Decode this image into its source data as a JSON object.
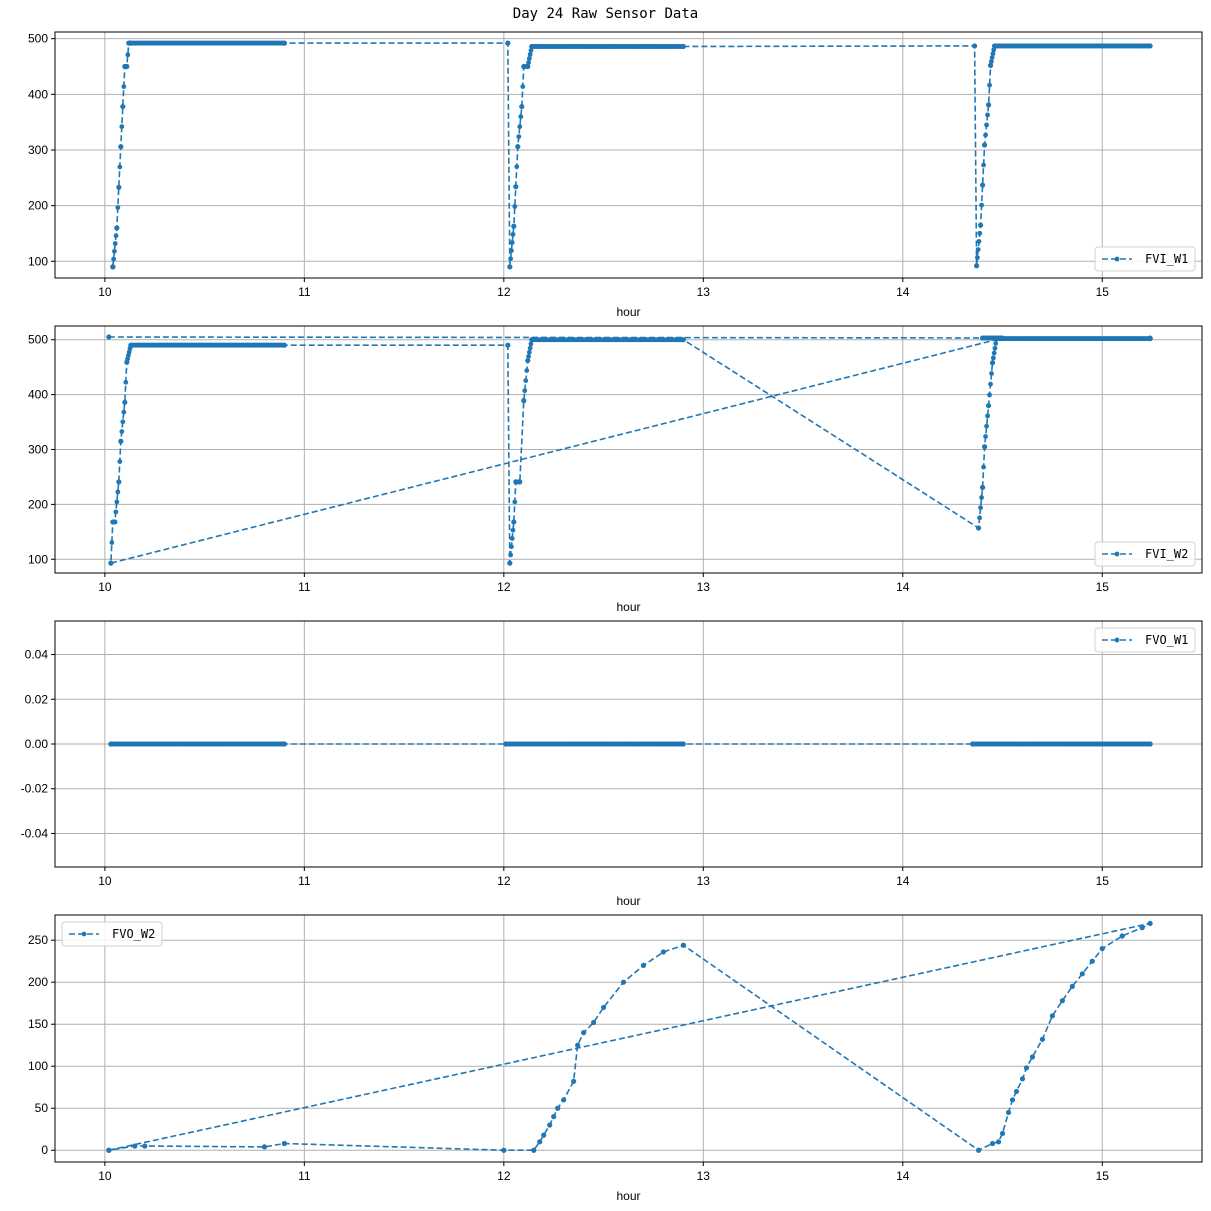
{
  "figure": {
    "title": "Day 24 Raw Sensor Data",
    "line_color": "#1f77b4",
    "grid_color": "#b0b0b0"
  },
  "chart_data": [
    {
      "type": "line",
      "title": "",
      "series": [
        {
          "name": "FVI_W1",
          "style": "dashed-with-dot-markers",
          "x": [
            10.04,
            10.04,
            10.06,
            10.07,
            10.08,
            10.09,
            10.1,
            10.11,
            10.12,
            10.13,
            10.9,
            12.02,
            12.03,
            12.05,
            12.06,
            12.07,
            12.09,
            12.1,
            12.12,
            12.14,
            12.9,
            14.36,
            14.37,
            14.39,
            14.4,
            14.41,
            14.43,
            14.44,
            14.46,
            14.47,
            15.24
          ],
          "y": [
            90,
            90,
            160,
            233,
            306,
            378,
            450,
            450,
            492,
            492,
            492,
            492,
            90,
            163,
            234,
            306,
            378,
            450,
            450,
            486,
            486,
            487,
            92,
            165,
            237,
            309,
            381,
            452,
            487,
            487,
            487
          ]
        }
      ],
      "xlabel": "hour",
      "ylabel": "",
      "xlim": [
        9.75,
        15.5
      ],
      "ylim": [
        70,
        512
      ],
      "xticks": [
        10,
        11,
        12,
        13,
        14,
        15
      ],
      "yticks": [
        100,
        200,
        300,
        400,
        500
      ],
      "ytick_labels": [
        "100",
        "200",
        "300",
        "400",
        "500"
      ],
      "grid": true,
      "legend_position": "lower right"
    },
    {
      "type": "line",
      "title": "",
      "series": [
        {
          "name": "FVI_W2",
          "style": "dashed-with-dot-markers",
          "x": [
            10.02,
            15.24,
            14.4,
            14.5,
            10.03,
            10.04,
            10.05,
            10.07,
            10.08,
            10.1,
            10.11,
            10.13,
            10.9,
            12.02,
            12.03,
            12.05,
            12.06,
            12.08,
            12.1,
            12.12,
            12.14,
            12.9,
            14.38,
            14.4,
            14.41,
            14.43,
            14.45,
            14.47,
            15.24
          ],
          "y": [
            505,
            503,
            503,
            503,
            93,
            168,
            168,
            241,
            315,
            386,
            459,
            490,
            490,
            490,
            93,
            168,
            241,
            241,
            389,
            462,
            500,
            500,
            157,
            231,
            305,
            380,
            458,
            502,
            502
          ]
        }
      ],
      "xlabel": "hour",
      "ylabel": "",
      "xlim": [
        9.75,
        15.5
      ],
      "ylim": [
        75,
        525
      ],
      "xticks": [
        10,
        11,
        12,
        13,
        14,
        15
      ],
      "yticks": [
        100,
        200,
        300,
        400,
        500
      ],
      "ytick_labels": [
        "100",
        "200",
        "300",
        "400",
        "500"
      ],
      "grid": true,
      "legend_position": "lower right"
    },
    {
      "type": "line",
      "title": "",
      "series": [
        {
          "name": "FVO_W1",
          "style": "dashed-with-dot-markers",
          "x": [
            10.03,
            10.9,
            12.01,
            12.9,
            14.35,
            15.24
          ],
          "y": [
            0,
            0,
            0,
            0,
            0,
            0
          ]
        }
      ],
      "xlabel": "hour",
      "ylabel": "",
      "xlim": [
        9.75,
        15.5
      ],
      "ylim": [
        -0.055,
        0.055
      ],
      "xticks": [
        10,
        11,
        12,
        13,
        14,
        15
      ],
      "yticks": [
        -0.04,
        -0.02,
        0.0,
        0.02,
        0.04
      ],
      "ytick_labels": [
        "-0.04",
        "-0.02",
        "0.00",
        "0.02",
        "0.04"
      ],
      "grid": true,
      "legend_position": "upper right"
    },
    {
      "type": "line",
      "title": "",
      "series": [
        {
          "name": "FVO_W2",
          "style": "dashed-with-dot-markers",
          "x": [
            10.02,
            15.24,
            15.2,
            15.1,
            15.0,
            14.95,
            14.9,
            14.85,
            14.8,
            14.75,
            14.7,
            14.65,
            14.62,
            14.6,
            14.57,
            14.55,
            14.53,
            14.5,
            14.48,
            14.45,
            14.38,
            12.9,
            12.8,
            12.7,
            12.6,
            12.5,
            12.45,
            12.4,
            12.37,
            12.35,
            12.3,
            12.27,
            12.25,
            12.23,
            12.2,
            12.18,
            12.15,
            12.0,
            10.9,
            10.8,
            10.2,
            10.15,
            10.02
          ],
          "y": [
            0,
            270,
            265,
            255,
            240,
            225,
            210,
            195,
            178,
            160,
            132,
            111,
            98,
            85,
            70,
            60,
            45,
            20,
            10,
            8,
            0,
            244,
            236,
            220,
            200,
            170,
            152,
            140,
            125,
            82,
            60,
            50,
            40,
            30,
            18,
            10,
            0,
            0,
            8,
            4,
            5,
            5,
            0
          ]
        }
      ],
      "xlabel": "hour",
      "ylabel": "",
      "xlim": [
        9.75,
        15.5
      ],
      "ylim": [
        -14,
        280
      ],
      "xticks": [
        10,
        11,
        12,
        13,
        14,
        15
      ],
      "yticks": [
        0,
        50,
        100,
        150,
        200,
        250
      ],
      "ytick_labels": [
        "0",
        "50",
        "100",
        "150",
        "200",
        "250"
      ],
      "grid": true,
      "legend_position": "upper left"
    }
  ]
}
